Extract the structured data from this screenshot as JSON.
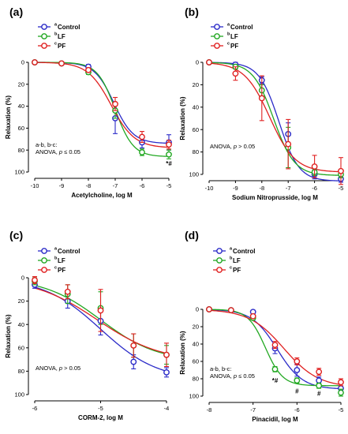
{
  "series_colors": {
    "Control": "#2b2bc8",
    "LF": "#22a822",
    "PF": "#e02020"
  },
  "chart_data": [
    {
      "type": "line",
      "panel": "(a)",
      "xlabel": "Acetylcholine, log M",
      "ylabel": "Relaxation (%)",
      "xlim": [
        -10,
        -5
      ],
      "ylim": [
        0,
        100
      ],
      "y_inverted": true,
      "xticks": [
        -10,
        -9,
        -8,
        -7,
        -6,
        -5
      ],
      "yticks": [
        0,
        20,
        40,
        60,
        80,
        100
      ],
      "legend": [
        {
          "sup": "a",
          "name": "Control"
        },
        {
          "sup": "b",
          "name": "LF"
        },
        {
          "sup": "c",
          "name": "PF"
        }
      ],
      "note": [
        "a-b, b-c:",
        "ANOVA, p ≤ 0.05"
      ],
      "series": [
        {
          "name": "Control",
          "x": [
            -10,
            -9,
            -8,
            -7,
            -6,
            -5
          ],
          "y": [
            0,
            1,
            4,
            51,
            73,
            73
          ],
          "err": [
            1,
            1,
            2,
            14,
            5,
            7
          ],
          "fit": {
            "bottom": 0,
            "top": 74,
            "ec50": -7.05,
            "hill": 1.2
          }
        },
        {
          "name": "LF",
          "x": [
            -10,
            -9,
            -8,
            -7,
            -6,
            -5
          ],
          "y": [
            0,
            1,
            9,
            44,
            82,
            84
          ],
          "err": [
            1,
            1,
            2,
            7,
            3,
            4
          ],
          "fit": {
            "bottom": 0,
            "top": 86,
            "ec50": -7.0,
            "hill": 1.3
          }
        },
        {
          "name": "PF",
          "x": [
            -10,
            -9,
            -8,
            -7,
            -6,
            -5
          ],
          "y": [
            0,
            1,
            7,
            38,
            68,
            75
          ],
          "err": [
            1,
            1,
            2,
            6,
            5,
            4
          ],
          "fit": {
            "bottom": 0,
            "top": 78,
            "ec50": -7.15,
            "hill": 1.0
          }
        }
      ],
      "annotations": [
        {
          "text": "*#",
          "x": -5,
          "y": 92
        }
      ]
    },
    {
      "type": "line",
      "panel": "(b)",
      "xlabel": "Sodium Nitroprusside, log M",
      "ylabel": "Relaxation (%)",
      "xlim": [
        -10,
        -5
      ],
      "ylim": [
        0,
        100
      ],
      "y_inverted": true,
      "xticks": [
        -10,
        -9,
        -8,
        -7,
        -6,
        -5
      ],
      "yticks": [
        0,
        20,
        40,
        60,
        80,
        100
      ],
      "legend": [
        {
          "sup": "a",
          "name": "Control"
        },
        {
          "sup": "b",
          "name": "LF"
        },
        {
          "sup": "c",
          "name": "PF"
        }
      ],
      "note": [
        "ANOVA, p > 0.05"
      ],
      "series": [
        {
          "name": "Control",
          "x": [
            -10,
            -9,
            -8,
            -7,
            -6,
            -5
          ],
          "y": [
            0,
            2,
            16,
            64,
            100,
            104
          ],
          "err": [
            1,
            2,
            3,
            10,
            4,
            3
          ],
          "fit": {
            "bottom": 0,
            "top": 106,
            "ec50": -7.35,
            "hill": 1.15
          }
        },
        {
          "name": "LF",
          "x": [
            -10,
            -9,
            -8,
            -7,
            -6,
            -5
          ],
          "y": [
            0,
            4,
            25,
            76,
            98,
            100
          ],
          "err": [
            1,
            2,
            5,
            18,
            3,
            3
          ],
          "fit": {
            "bottom": 0,
            "top": 101,
            "ec50": -7.55,
            "hill": 1.1
          }
        },
        {
          "name": "PF",
          "x": [
            -10,
            -9,
            -8,
            -7,
            -6,
            -5
          ],
          "y": [
            0,
            10,
            32,
            73,
            93,
            97
          ],
          "err": [
            1,
            6,
            20,
            22,
            10,
            12
          ],
          "fit": {
            "bottom": 0,
            "top": 98,
            "ec50": -7.7,
            "hill": 0.9
          }
        }
      ],
      "annotations": []
    },
    {
      "type": "line",
      "panel": "(c)",
      "xlabel": "CORM-2, log M",
      "ylabel": "Relaxation (%)",
      "xlim": [
        -6,
        -4
      ],
      "ylim": [
        0,
        100
      ],
      "y_inverted": true,
      "xticks": [
        -6,
        -5,
        -4
      ],
      "yticks": [
        0,
        20,
        40,
        60,
        80,
        100
      ],
      "legend": [
        {
          "sup": "a",
          "name": "Control"
        },
        {
          "sup": "b",
          "name": "LF"
        },
        {
          "sup": "c",
          "name": "PF"
        }
      ],
      "note": [
        "ANOVA, p > 0.05"
      ],
      "series": [
        {
          "name": "Control",
          "x": [
            -6,
            -5.5,
            -5,
            -4.5,
            -4
          ],
          "y": [
            6,
            20,
            37,
            72,
            81
          ],
          "err": [
            3,
            6,
            12,
            6,
            4
          ],
          "fit": {
            "bottom": 0,
            "top": 88,
            "ec50": -5.0,
            "hill": 1.0
          }
        },
        {
          "name": "LF",
          "x": [
            -6,
            -5.5,
            -5,
            -4.5,
            -4
          ],
          "y": [
            3,
            14,
            26,
            58,
            66
          ],
          "err": [
            3,
            8,
            14,
            10,
            8
          ],
          "fit": {
            "bottom": 0,
            "top": 72,
            "ec50": -5.0,
            "hill": 1.0
          }
        },
        {
          "name": "PF",
          "x": [
            -6,
            -5.5,
            -5,
            -4.5,
            -4
          ],
          "y": [
            2,
            12,
            28,
            58,
            66
          ],
          "err": [
            3,
            6,
            18,
            10,
            10
          ],
          "fit": {
            "bottom": 0,
            "top": 72,
            "ec50": -5.05,
            "hill": 0.9
          }
        }
      ],
      "annotations": []
    },
    {
      "type": "line",
      "panel": "(d)",
      "xlabel": "Pinacidil, log M",
      "ylabel": "Relaxation (%)",
      "xlim": [
        -8,
        -5
      ],
      "ylim": [
        0,
        100
      ],
      "y_inverted": true,
      "xticks": [
        -8,
        -7,
        -6,
        -5
      ],
      "yticks": [
        0,
        20,
        40,
        60,
        80,
        100
      ],
      "legend": [
        {
          "sup": "a",
          "name": "Control"
        },
        {
          "sup": "b",
          "name": "LF"
        },
        {
          "sup": "c",
          "name": "PF"
        }
      ],
      "note": [
        "a-b, b-c:",
        "ANOVA, p ≤ 0.05"
      ],
      "series": [
        {
          "name": "Control",
          "x": [
            -8,
            -7.5,
            -7,
            -6.5,
            -6,
            -5.5,
            -5
          ],
          "y": [
            0,
            1,
            3,
            45,
            70,
            82,
            91
          ],
          "err": [
            1,
            1,
            2,
            6,
            7,
            4,
            5
          ],
          "fit": {
            "bottom": 0,
            "top": 92,
            "ec50": -6.45,
            "hill": 1.5
          }
        },
        {
          "name": "LF",
          "x": [
            -8,
            -7.5,
            -7,
            -6.5,
            -6,
            -5.5,
            -5
          ],
          "y": [
            0,
            1,
            10,
            69,
            82,
            88,
            96
          ],
          "err": [
            1,
            1,
            2,
            3,
            3,
            3,
            4
          ],
          "fit": {
            "bottom": 0,
            "top": 88,
            "ec50": -6.72,
            "hill": 2.2
          }
        },
        {
          "name": "PF",
          "x": [
            -8,
            -7.5,
            -7,
            -6.5,
            -6,
            -5.5,
            -5
          ],
          "y": [
            0,
            1,
            8,
            41,
            60,
            72,
            84
          ],
          "err": [
            1,
            1,
            2,
            4,
            4,
            4,
            4
          ],
          "fit": {
            "bottom": 0,
            "top": 90,
            "ec50": -6.3,
            "hill": 1.1
          }
        }
      ],
      "annotations": [
        {
          "text": "*#",
          "x": -6.5,
          "y": 82
        },
        {
          "text": "#",
          "x": -6,
          "y": 94
        },
        {
          "text": "#",
          "x": -5.5,
          "y": 97
        }
      ]
    }
  ]
}
